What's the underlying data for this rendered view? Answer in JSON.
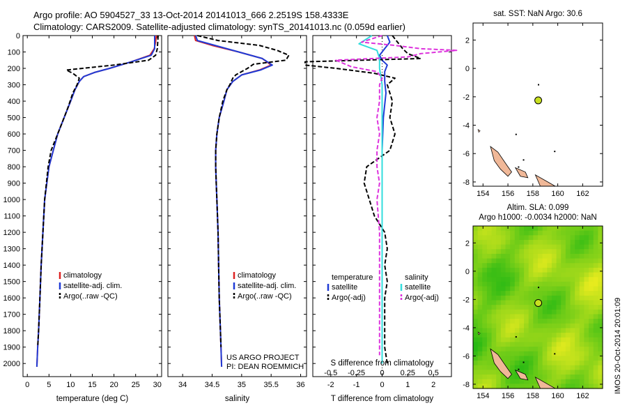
{
  "header": {
    "line1": "Argo profile: AO 5904527_33 13-Oct-2014 20141013_666 2.2519S 158.4333E",
    "line2": "Climatology: CARS2009. Satellite-adjusted climatology: synTS_20141013.nc (0.059d earlier)"
  },
  "colors": {
    "climatology": "#dd2222",
    "satellite": "#1f3bd6",
    "argo": "#000000",
    "sal_satellite": "#33dddd",
    "sal_argo": "#dd33dd",
    "land": "#f0b898",
    "marker": "#c8e020"
  },
  "chart_data": [
    {
      "type": "line",
      "id": "temperature",
      "xlabel": "temperature (deg C)",
      "xlim": [
        -1,
        31
      ],
      "ylim": [
        0,
        2080
      ],
      "xticks": [
        0,
        5,
        10,
        15,
        20,
        25,
        30
      ],
      "yticks": [
        0,
        100,
        200,
        300,
        400,
        500,
        600,
        700,
        800,
        900,
        1000,
        1100,
        1200,
        1300,
        1400,
        1500,
        1600,
        1700,
        1800,
        1900,
        2000
      ],
      "legend": [
        "climatology",
        "satellite-adj. clim.",
        "Argo(..raw -QC)"
      ],
      "series": [
        {
          "name": "climatology",
          "style": "solid",
          "points": [
            [
              29.8,
              0
            ],
            [
              29.6,
              40
            ],
            [
              29.3,
              80
            ],
            [
              28.3,
              120
            ],
            [
              24,
              160
            ],
            [
              19,
              200
            ],
            [
              15.5,
              225
            ],
            [
              13,
              250
            ],
            [
              12,
              280
            ],
            [
              11,
              330
            ],
            [
              10,
              400
            ],
            [
              8.5,
              500
            ],
            [
              7,
              600
            ],
            [
              6,
              700
            ],
            [
              5,
              800
            ],
            [
              4.5,
              900
            ],
            [
              4,
              1000
            ],
            [
              3.6,
              1200
            ],
            [
              3.2,
              1400
            ],
            [
              2.9,
              1600
            ],
            [
              2.6,
              1800
            ],
            [
              2.4,
              1900
            ],
            [
              2.2,
              2020
            ]
          ]
        },
        {
          "name": "satellite-adj. clim.",
          "style": "solid",
          "points": [
            [
              29.4,
              0
            ],
            [
              29.4,
              40
            ],
            [
              29.4,
              80
            ],
            [
              28.6,
              120
            ],
            [
              24,
              160
            ],
            [
              19,
              200
            ],
            [
              15.5,
              225
            ],
            [
              13,
              250
            ],
            [
              12,
              280
            ],
            [
              11,
              330
            ],
            [
              10,
              400
            ],
            [
              8.5,
              500
            ],
            [
              7,
              600
            ],
            [
              6,
              700
            ],
            [
              5,
              800
            ],
            [
              4.5,
              900
            ],
            [
              4,
              1000
            ],
            [
              3.6,
              1200
            ],
            [
              3.2,
              1400
            ],
            [
              2.9,
              1600
            ],
            [
              2.6,
              1800
            ],
            [
              2.4,
              1900
            ],
            [
              2.2,
              2020
            ]
          ]
        },
        {
          "name": "Argo(..raw -QC)",
          "style": "dashed",
          "points": [
            [
              30.2,
              0
            ],
            [
              30.1,
              40
            ],
            [
              30,
              80
            ],
            [
              29.6,
              120
            ],
            [
              28,
              150
            ],
            [
              20,
              180
            ],
            [
              9,
              210
            ],
            [
              10.5,
              230
            ],
            [
              12,
              260
            ],
            [
              11.5,
              300
            ],
            [
              10.5,
              350
            ],
            [
              9.5,
              430
            ],
            [
              8.5,
              500
            ],
            [
              7,
              600
            ],
            [
              5.5,
              700
            ],
            [
              4.8,
              800
            ],
            [
              4.4,
              900
            ],
            [
              4,
              1000
            ],
            [
              3.6,
              1200
            ],
            [
              3.2,
              1400
            ],
            [
              2.9,
              1600
            ],
            [
              2.6,
              1800
            ],
            [
              2.4,
              1900
            ]
          ]
        }
      ]
    },
    {
      "type": "line",
      "id": "salinity",
      "xlabel": "salinity",
      "xlim": [
        33.75,
        36.1
      ],
      "ylim": [
        0,
        2080
      ],
      "xticks": [
        34,
        34.5,
        35,
        35.5,
        36
      ],
      "legend": [
        "climatology",
        "satellite-adj. clim.",
        "Argo(..raw -QC)"
      ],
      "annotation": [
        "US ARGO PROJECT",
        "PI: DEAN ROEMMICH"
      ],
      "series": [
        {
          "name": "climatology",
          "style": "solid",
          "points": [
            [
              34.2,
              0
            ],
            [
              34.22,
              30
            ],
            [
              34.5,
              60
            ],
            [
              34.95,
              100
            ],
            [
              35.35,
              140
            ],
            [
              35.5,
              180
            ],
            [
              35.3,
              210
            ],
            [
              35,
              240
            ],
            [
              34.85,
              280
            ],
            [
              34.75,
              330
            ],
            [
              34.7,
              400
            ],
            [
              34.62,
              500
            ],
            [
              34.58,
              600
            ],
            [
              34.56,
              700
            ],
            [
              34.56,
              800
            ],
            [
              34.57,
              900
            ],
            [
              34.58,
              1000
            ],
            [
              34.6,
              1200
            ],
            [
              34.61,
              1400
            ],
            [
              34.62,
              1600
            ],
            [
              34.64,
              1800
            ],
            [
              34.65,
              1900
            ],
            [
              34.66,
              2020
            ]
          ]
        },
        {
          "name": "satellite-adj. clim.",
          "style": "solid",
          "points": [
            [
              34.22,
              0
            ],
            [
              34.25,
              30
            ],
            [
              34.55,
              60
            ],
            [
              34.95,
              100
            ],
            [
              35.35,
              140
            ],
            [
              35.52,
              180
            ],
            [
              35.32,
              210
            ],
            [
              35,
              240
            ],
            [
              34.85,
              280
            ],
            [
              34.75,
              330
            ],
            [
              34.7,
              400
            ],
            [
              34.62,
              500
            ],
            [
              34.58,
              600
            ],
            [
              34.56,
              700
            ],
            [
              34.56,
              800
            ],
            [
              34.57,
              900
            ],
            [
              34.58,
              1000
            ],
            [
              34.6,
              1200
            ],
            [
              34.61,
              1400
            ],
            [
              34.62,
              1600
            ],
            [
              34.64,
              1800
            ],
            [
              34.65,
              1900
            ],
            [
              34.66,
              2020
            ]
          ]
        },
        {
          "name": "Argo(..raw -QC)",
          "style": "dashed",
          "points": [
            [
              34.25,
              0
            ],
            [
              34.6,
              30
            ],
            [
              35.3,
              60
            ],
            [
              35.6,
              90
            ],
            [
              35.8,
              120
            ],
            [
              35.75,
              150
            ],
            [
              35.2,
              175
            ],
            [
              35.1,
              200
            ],
            [
              34.9,
              240
            ],
            [
              34.85,
              260
            ],
            [
              34.8,
              300
            ],
            [
              34.75,
              330
            ],
            [
              34.68,
              400
            ],
            [
              34.62,
              500
            ],
            [
              34.58,
              600
            ],
            [
              34.56,
              700
            ],
            [
              34.56,
              800
            ],
            [
              34.57,
              900
            ],
            [
              34.58,
              1000
            ],
            [
              34.6,
              1200
            ],
            [
              34.61,
              1400
            ],
            [
              34.62,
              1600
            ],
            [
              34.64,
              1800
            ],
            [
              34.65,
              1900
            ]
          ]
        }
      ]
    },
    {
      "type": "line",
      "id": "difference",
      "xlabel": "T difference from climatology",
      "xlabel_top": "S difference from climatology",
      "xlim": [
        -2.7,
        2.7
      ],
      "ylim": [
        0,
        2080
      ],
      "xticks": [
        -2,
        -1,
        0,
        1,
        2
      ],
      "xticks_top_labels": [
        "-0.5",
        "-0.25",
        "0",
        "0.25",
        "0.5"
      ],
      "xticks_top_positions": [
        -2,
        -1,
        0,
        1,
        2
      ],
      "legend_left_title": "temperature",
      "legend_right_title": "salinity",
      "legend_left": [
        "satellite",
        "Argo(-adj)"
      ],
      "legend_right": [
        "satellite",
        "Argo(-adj)"
      ],
      "series": [
        {
          "name": "T satellite",
          "style": "solid",
          "color_key": "satellite",
          "points": [
            [
              0.2,
              0
            ],
            [
              0.3,
              40
            ],
            [
              0.1,
              80
            ],
            [
              -0.1,
              120
            ],
            [
              0,
              150
            ],
            [
              0.2,
              180
            ],
            [
              0.1,
              220
            ],
            [
              0.1,
              280
            ],
            [
              0.15,
              350
            ],
            [
              0.05,
              500
            ],
            [
              0,
              700
            ],
            [
              0,
              1000
            ],
            [
              0,
              1500
            ],
            [
              0,
              2000
            ]
          ]
        },
        {
          "name": "T Argo(-adj)",
          "style": "dashed",
          "color_key": "argo",
          "points": [
            [
              0.4,
              0
            ],
            [
              0.6,
              40
            ],
            [
              0.8,
              80
            ],
            [
              1,
              110
            ],
            [
              1.5,
              140
            ],
            [
              -3,
              160
            ],
            [
              -3,
              180
            ],
            [
              -1.8,
              200
            ],
            [
              -0.3,
              230
            ],
            [
              0.5,
              260
            ],
            [
              0.2,
              300
            ],
            [
              0.4,
              400
            ],
            [
              0.3,
              500
            ],
            [
              0.5,
              600
            ],
            [
              0.3,
              700
            ],
            [
              -0.6,
              800
            ],
            [
              -0.7,
              900
            ],
            [
              -0.5,
              1000
            ],
            [
              -0.3,
              1100
            ],
            [
              0.1,
              1200
            ],
            [
              0.2,
              1300
            ],
            [
              0.1,
              1400
            ],
            [
              0.2,
              1500
            ],
            [
              0.1,
              1600
            ],
            [
              0.1,
              1800
            ],
            [
              0.1,
              1900
            ],
            [
              0.2,
              2000
            ]
          ]
        },
        {
          "name": "S satellite",
          "style": "solid",
          "color_key": "sal_satellite",
          "points": [
            [
              -0.4,
              0
            ],
            [
              -0.9,
              50
            ],
            [
              -0.2,
              90
            ],
            [
              -0.1,
              140
            ],
            [
              -0.1,
              200
            ],
            [
              0,
              300
            ],
            [
              0,
              500
            ],
            [
              0,
              800
            ],
            [
              0,
              1200
            ],
            [
              0,
              1600
            ],
            [
              0,
              2000
            ]
          ]
        },
        {
          "name": "S Argo(-adj)",
          "style": "dashed",
          "color_key": "sal_argo",
          "points": [
            [
              0,
              0
            ],
            [
              -0.8,
              40
            ],
            [
              0.5,
              60
            ],
            [
              1.5,
              80
            ],
            [
              2.9,
              90
            ],
            [
              1.5,
              110
            ],
            [
              1,
              130
            ],
            [
              -1.8,
              150
            ],
            [
              -1.2,
              190
            ],
            [
              -0.2,
              220
            ],
            [
              0,
              260
            ],
            [
              -0.1,
              300
            ],
            [
              -0.1,
              400
            ],
            [
              -0.2,
              500
            ],
            [
              -0.1,
              600
            ],
            [
              -0.2,
              700
            ],
            [
              -0.2,
              800
            ],
            [
              -0.1,
              900
            ],
            [
              -0.2,
              1000
            ],
            [
              -0.1,
              1200
            ],
            [
              -0.1,
              1400
            ],
            [
              -0.1,
              1600
            ],
            [
              -0.1,
              1800
            ],
            [
              -0.1,
              1950
            ]
          ]
        }
      ]
    },
    {
      "type": "scatter",
      "id": "sst_map",
      "title": "sat. SST: NaN Argo: 30.6",
      "xlim": [
        153.2,
        163.6
      ],
      "ylim": [
        -8.3,
        3.2
      ],
      "xticks": [
        154,
        156,
        158,
        160,
        162
      ],
      "yticks": [
        2,
        0,
        -2,
        -4,
        -6,
        -8
      ],
      "marker": {
        "lon": 158.4333,
        "lat": -2.2519
      }
    },
    {
      "type": "heatmap",
      "id": "sla_map",
      "title_line1": "Altim. SLA: 0.099",
      "title_line2": "Argo h1000: -0.0034 h2000: NaN",
      "xlim": [
        153.2,
        163.6
      ],
      "ylim": [
        -8.3,
        3.2
      ],
      "xticks": [
        154,
        156,
        158,
        160,
        162
      ],
      "yticks": [
        2,
        0,
        -2,
        -4,
        -6,
        -8
      ],
      "marker": {
        "lon": 158.4333,
        "lat": -2.2519
      }
    }
  ],
  "footer": {
    "stamp": "IMOS 20-Oct-2014 20:01:09"
  }
}
